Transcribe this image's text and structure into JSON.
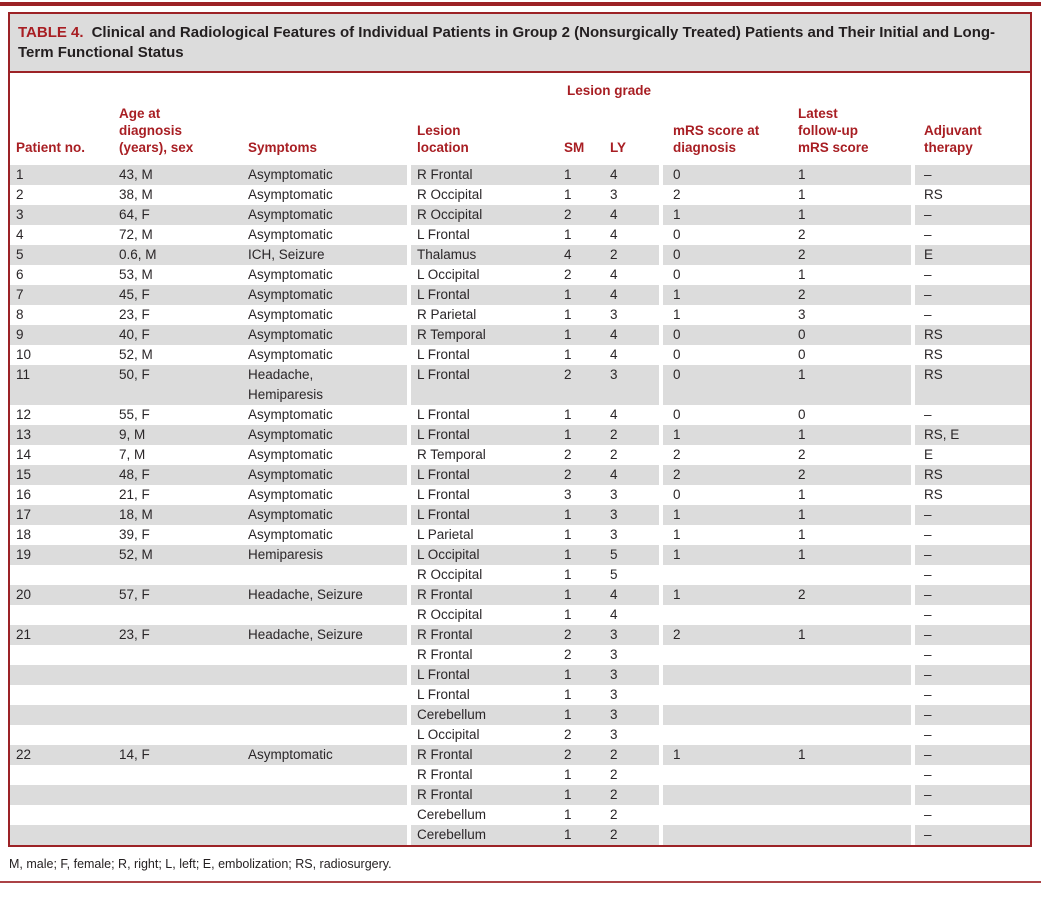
{
  "colors": {
    "accent": "#a81e23",
    "border": "#9c2226",
    "shade": "#dcdcdc"
  },
  "page": {
    "title_label": "TABLE 4.",
    "title_text": "Clinical and Radiological Features of Individual Patients in Group 2 (Nonsurgically Treated) Patients and Their Initial and Long-Term Functional Status"
  },
  "table": {
    "group_header": "Lesion grade",
    "columns": [
      "Patient no.",
      "Age at\ndiagnosis\n(years), sex",
      "Symptoms",
      "Lesion\nlocation",
      "SM",
      "LY",
      "mRS score at\ndiagnosis",
      "Latest\nfollow-up\nmRS score",
      "Adjuvant\ntherapy"
    ],
    "rows": [
      [
        "1",
        "43, M",
        "Asymptomatic",
        "R Frontal",
        "1",
        "4",
        "0",
        "1",
        "–"
      ],
      [
        "2",
        "38, M",
        "Asymptomatic",
        "R Occipital",
        "1",
        "3",
        "2",
        "1",
        "RS"
      ],
      [
        "3",
        "64, F",
        "Asymptomatic",
        "R Occipital",
        "2",
        "4",
        "1",
        "1",
        "–"
      ],
      [
        "4",
        "72, M",
        "Asymptomatic",
        "L Frontal",
        "1",
        "4",
        "0",
        "2",
        "–"
      ],
      [
        "5",
        "0.6, M",
        "ICH, Seizure",
        "Thalamus",
        "4",
        "2",
        "0",
        "2",
        "E"
      ],
      [
        "6",
        "53, M",
        "Asymptomatic",
        "L Occipital",
        "2",
        "4",
        "0",
        "1",
        "–"
      ],
      [
        "7",
        "45, F",
        "Asymptomatic",
        "L Frontal",
        "1",
        "4",
        "1",
        "2",
        "–"
      ],
      [
        "8",
        "23, F",
        "Asymptomatic",
        "R Parietal",
        "1",
        "3",
        "1",
        "3",
        "–"
      ],
      [
        "9",
        "40, F",
        "Asymptomatic",
        "R Temporal",
        "1",
        "4",
        "0",
        "0",
        "RS"
      ],
      [
        "10",
        "52, M",
        "Asymptomatic",
        "L Frontal",
        "1",
        "4",
        "0",
        "0",
        "RS"
      ],
      [
        "11",
        "50, F",
        "Headache,\nHemiparesis",
        "L Frontal",
        "2",
        "3",
        "0",
        "1",
        "RS"
      ],
      [
        "12",
        "55, F",
        "Asymptomatic",
        "L Frontal",
        "1",
        "4",
        "0",
        "0",
        "–"
      ],
      [
        "13",
        "9, M",
        "Asymptomatic",
        "L Frontal",
        "1",
        "2",
        "1",
        "1",
        "RS, E"
      ],
      [
        "14",
        "7, M",
        "Asymptomatic",
        "R Temporal",
        "2",
        "2",
        "2",
        "2",
        "E"
      ],
      [
        "15",
        "48, F",
        "Asymptomatic",
        "L Frontal",
        "2",
        "4",
        "2",
        "2",
        "RS"
      ],
      [
        "16",
        "21, F",
        "Asymptomatic",
        "L Frontal",
        "3",
        "3",
        "0",
        "1",
        "RS"
      ],
      [
        "17",
        "18, M",
        "Asymptomatic",
        "L Frontal",
        "1",
        "3",
        "1",
        "1",
        "–"
      ],
      [
        "18",
        "39, F",
        "Asymptomatic",
        "L Parietal",
        "1",
        "3",
        "1",
        "1",
        "–"
      ],
      [
        "19",
        "52, M",
        "Hemiparesis",
        "L Occipital",
        "1",
        "5",
        "1",
        "1",
        "–"
      ],
      [
        "",
        "",
        "",
        "R Occipital",
        "1",
        "5",
        "",
        "",
        "–"
      ],
      [
        "20",
        "57, F",
        "Headache, Seizure",
        "R Frontal",
        "1",
        "4",
        "1",
        "2",
        "–"
      ],
      [
        "",
        "",
        "",
        "R Occipital",
        "1",
        "4",
        "",
        "",
        "–"
      ],
      [
        "21",
        "23, F",
        "Headache, Seizure",
        "R Frontal",
        "2",
        "3",
        "2",
        "1",
        "–"
      ],
      [
        "",
        "",
        "",
        "R Frontal",
        "2",
        "3",
        "",
        "",
        "–"
      ],
      [
        "",
        "",
        "",
        "L Frontal",
        "1",
        "3",
        "",
        "",
        "–"
      ],
      [
        "",
        "",
        "",
        "L Frontal",
        "1",
        "3",
        "",
        "",
        "–"
      ],
      [
        "",
        "",
        "",
        "Cerebellum",
        "1",
        "3",
        "",
        "",
        "–"
      ],
      [
        "",
        "",
        "",
        "L Occipital",
        "2",
        "3",
        "",
        "",
        "–"
      ],
      [
        "22",
        "14, F",
        "Asymptomatic",
        "R Frontal",
        "2",
        "2",
        "1",
        "1",
        "–"
      ],
      [
        "",
        "",
        "",
        "R Frontal",
        "1",
        "2",
        "",
        "",
        "–"
      ],
      [
        "",
        "",
        "",
        "R Frontal",
        "1",
        "2",
        "",
        "",
        "–"
      ],
      [
        "",
        "",
        "",
        "Cerebellum",
        "1",
        "2",
        "",
        "",
        "–"
      ],
      [
        "",
        "",
        "",
        "Cerebellum",
        "1",
        "2",
        "",
        "",
        "–"
      ]
    ]
  },
  "footnote": "M, male; F, female; R, right; L, left; E, embolization; RS, radiosurgery."
}
